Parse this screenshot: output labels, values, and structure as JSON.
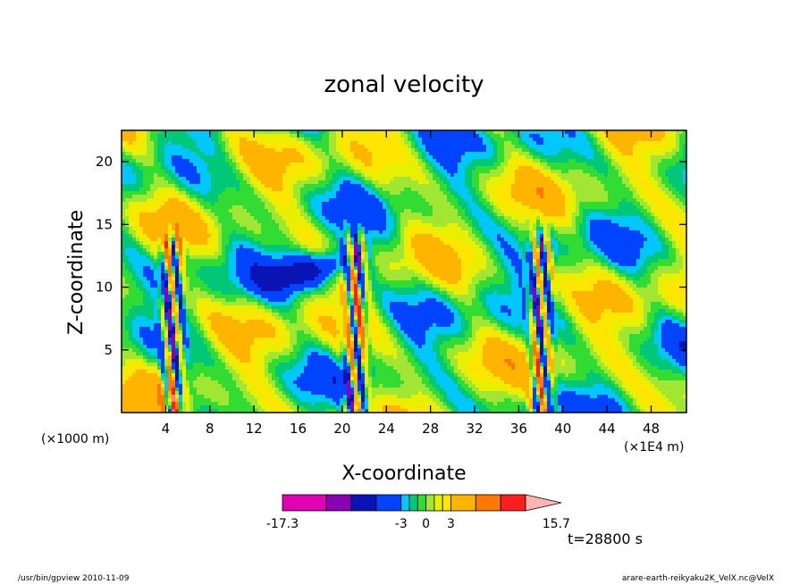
{
  "chart_data": {
    "type": "heatmap",
    "title": "zonal velocity",
    "xlabel": "X-coordinate",
    "ylabel": "Z-coordinate",
    "x_unit_left": "(×1000 m)",
    "x_unit_right": "(×1E4 m)",
    "x_ticks": [
      4,
      8,
      12,
      16,
      20,
      24,
      28,
      32,
      36,
      40,
      44,
      48
    ],
    "x_tick_labels": [
      "4",
      "8",
      "12",
      "16",
      "20",
      "24",
      "28",
      "32",
      "36",
      "40",
      "44",
      "48"
    ],
    "y_ticks": [
      5,
      10,
      15,
      20
    ],
    "y_tick_labels": [
      "5",
      "10",
      "15",
      "20"
    ],
    "xlim": [
      0,
      51.2
    ],
    "ylim": [
      0,
      22.5
    ],
    "time_label": "t=28800 s",
    "colorbar": {
      "levels": [
        -17.3,
        -12,
        -9,
        -6,
        -3,
        -2,
        -1,
        0,
        1,
        2,
        3,
        6,
        9,
        12,
        15.7
      ],
      "tick_values": [
        -17.3,
        -3,
        0,
        3,
        15.7
      ],
      "tick_labels": [
        "-17.3",
        "-3",
        "0",
        "3",
        "15.7"
      ],
      "colors": [
        "#e100b4",
        "#8a00b4",
        "#0a14b4",
        "#0044ff",
        "#00c8ff",
        "#00c878",
        "#32dc32",
        "#a0e632",
        "#e6f000",
        "#ffe600",
        "#ffb400",
        "#ff7800",
        "#ff1e1e",
        "#ff8080",
        "#ffb4b4"
      ]
    }
  },
  "footer": {
    "left": "/usr/bin/gpview   2010-11-09",
    "right": "arare-earth-reikyaku2K_VelX.nc@VelX"
  }
}
